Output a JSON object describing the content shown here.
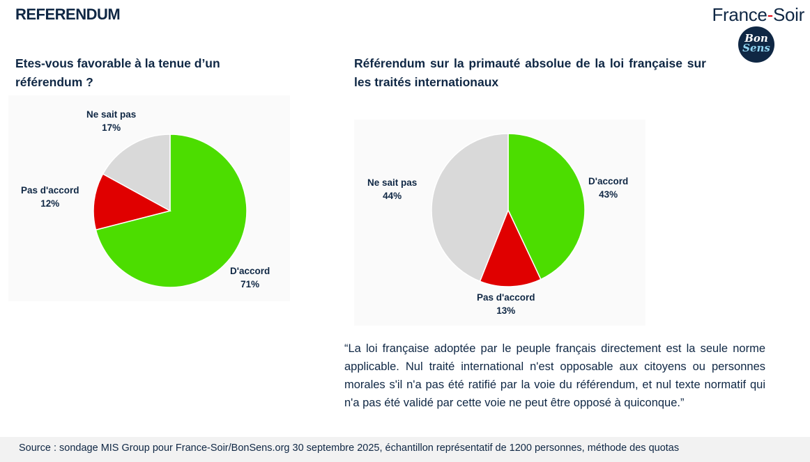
{
  "header": {
    "title": "REFERENDUM",
    "brand_part1": "France",
    "brand_dash": "-",
    "brand_part2": "Soir",
    "logo_line1": "Bon",
    "logo_line2": "Sens"
  },
  "colors": {
    "navy": "#0f2744",
    "agree": "#4cdd00",
    "disagree": "#e00000",
    "unknown": "#d9d9d9",
    "accent_red": "#e30613"
  },
  "chart_data": [
    {
      "type": "pie",
      "title": "Etes-vous favorable à la tenue d’un référendum ?",
      "slices": [
        {
          "label": "D'accord",
          "value": 71,
          "display": "71%",
          "color": "#4cdd00"
        },
        {
          "label": "Pas d'accord",
          "value": 12,
          "display": "12%",
          "color": "#e00000"
        },
        {
          "label": "Ne sait pas",
          "value": 17,
          "display": "17%",
          "color": "#d9d9d9"
        }
      ]
    },
    {
      "type": "pie",
      "title": "Référendum sur la primauté absolue de la loi française sur les traités internationaux",
      "slices": [
        {
          "label": "D'accord",
          "value": 43,
          "display": "43%",
          "color": "#4cdd00"
        },
        {
          "label": "Pas d'accord",
          "value": 13,
          "display": "13%",
          "color": "#e00000"
        },
        {
          "label": "Ne sait pas",
          "value": 44,
          "display": "44%",
          "color": "#d9d9d9"
        }
      ]
    }
  ],
  "quote": "“La loi française adoptée par le peuple français directement est la seule norme applicable. Nul traité international n'est opposable aux citoyens ou personnes morales s'il n'a pas été ratifié par la voie du référendum, et nul texte normatif qui n'a pas été validé par cette voie ne peut être opposé à quiconque.”",
  "source": "Source : sondage MIS Group pour France-Soir/BonSens.org 30 septembre 2025, échantillon représentatif de 1200 personnes, méthode des quotas"
}
